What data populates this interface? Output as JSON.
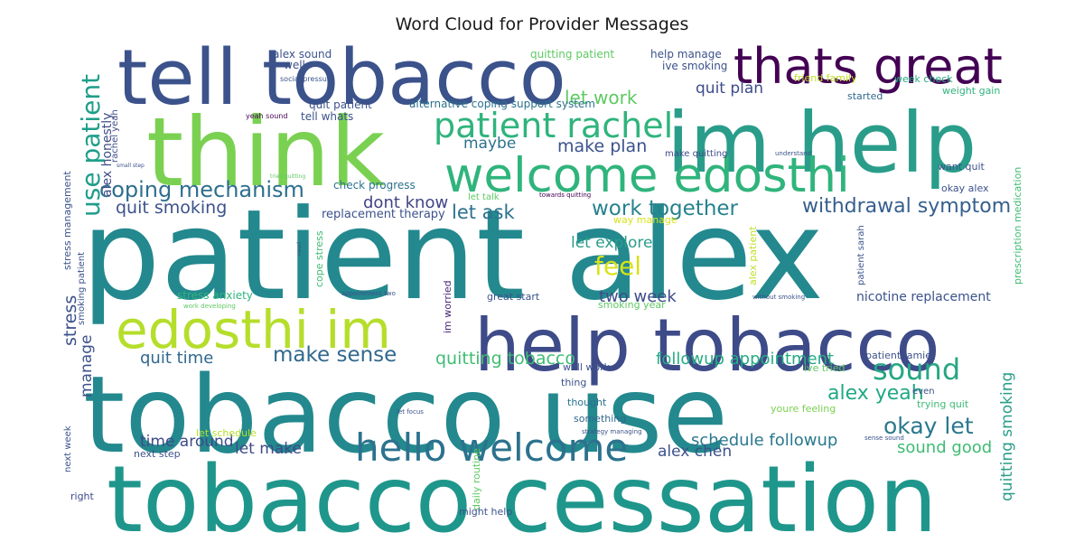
{
  "chart_data": {
    "type": "wordcloud",
    "title": "Word Cloud for Provider Messages",
    "words": [
      {
        "text": "patient alex",
        "color": "#23898e"
      },
      {
        "text": "tobacco use",
        "color": "#23898e"
      },
      {
        "text": "tobacco cessation",
        "color": "#1f968b"
      },
      {
        "text": "think",
        "color": "#7ad151"
      },
      {
        "text": "tell tobacco",
        "color": "#3b528b"
      },
      {
        "text": "im help",
        "color": "#2a9d8a"
      },
      {
        "text": "help tobacco",
        "color": "#3e4b89"
      },
      {
        "text": "thats great",
        "color": "#440154"
      },
      {
        "text": "welcome edosthi",
        "color": "#2fb47c"
      },
      {
        "text": "edosthi im",
        "color": "#b5de2b"
      },
      {
        "text": "hello welcome",
        "color": "#2c728e"
      },
      {
        "text": "patient rachel",
        "color": "#2fb47c"
      },
      {
        "text": "use patient",
        "color": "#1f9e89"
      },
      {
        "text": "coping mechanism",
        "color": "#2e6f8e"
      },
      {
        "text": "withdrawal symptom",
        "color": "#355f8d"
      },
      {
        "text": "work together",
        "color": "#26828e"
      },
      {
        "text": "make sense",
        "color": "#31688e"
      },
      {
        "text": "sound",
        "color": "#26a784"
      },
      {
        "text": "alex yeah",
        "color": "#22a884"
      },
      {
        "text": "okay let",
        "color": "#2a788e"
      },
      {
        "text": "feel",
        "color": "#d8e219"
      },
      {
        "text": "let work",
        "color": "#5ec962"
      },
      {
        "text": "quit smoking",
        "color": "#3b528b"
      },
      {
        "text": "let ask",
        "color": "#2c728e"
      },
      {
        "text": "make plan",
        "color": "#3b528b"
      },
      {
        "text": "maybe",
        "color": "#2c728e"
      },
      {
        "text": "dont know",
        "color": "#414487"
      },
      {
        "text": "quit plan",
        "color": "#3e4c8a"
      },
      {
        "text": "let explore",
        "color": "#2a9d8a"
      },
      {
        "text": "two week",
        "color": "#3e4c8a"
      },
      {
        "text": "quitting tobacco",
        "color": "#3fbc73"
      },
      {
        "text": "followup appointment",
        "color": "#25ac82"
      },
      {
        "text": "schedule followup",
        "color": "#2a788e"
      },
      {
        "text": "sound good",
        "color": "#3fbc73"
      },
      {
        "text": "alex chen",
        "color": "#3b528b"
      },
      {
        "text": "let make",
        "color": "#3e4a89"
      },
      {
        "text": "time around",
        "color": "#3e4a89"
      },
      {
        "text": "quit time",
        "color": "#31688e"
      },
      {
        "text": "stress",
        "color": "#3b528b"
      },
      {
        "text": "manage",
        "color": "#3b528b"
      },
      {
        "text": "alex honestly",
        "color": "#3e4c8a"
      },
      {
        "text": "quitting smoking",
        "color": "#2a9d8a"
      },
      {
        "text": "nicotine replacement",
        "color": "#3b528b"
      },
      {
        "text": "replacement therapy",
        "color": "#3b528b"
      },
      {
        "text": "check progress",
        "color": "#2c728e"
      },
      {
        "text": "stress anxiety",
        "color": "#2fb47c"
      },
      {
        "text": "alex sound",
        "color": "#3b528b"
      },
      {
        "text": "well",
        "color": "#3b528b"
      },
      {
        "text": "quit patient",
        "color": "#3b528b"
      },
      {
        "text": "tell whats",
        "color": "#3b528b"
      },
      {
        "text": "alternative coping support system",
        "color": "#2c728e"
      },
      {
        "text": "quitting patient",
        "color": "#5ec962"
      },
      {
        "text": "help manage",
        "color": "#3b528b"
      },
      {
        "text": "ive smoking",
        "color": "#3b528b"
      },
      {
        "text": "friend family",
        "color": "#bddf26"
      },
      {
        "text": "week check",
        "color": "#25ac82"
      },
      {
        "text": "weight gain",
        "color": "#2fb47c"
      },
      {
        "text": "started",
        "color": "#31688e"
      },
      {
        "text": "make quitting",
        "color": "#3e4c8a"
      },
      {
        "text": "want quit",
        "color": "#3b528b"
      },
      {
        "text": "okay alex",
        "color": "#3b528b"
      },
      {
        "text": "prescription medication",
        "color": "#3fbc73"
      },
      {
        "text": "patient sarah",
        "color": "#3b528b"
      },
      {
        "text": "alex patient",
        "color": "#bddf26"
      },
      {
        "text": "way manage",
        "color": "#d8e219"
      },
      {
        "text": "smoking year",
        "color": "#5ec962"
      },
      {
        "text": "great start",
        "color": "#3b528b"
      },
      {
        "text": "im worried",
        "color": "#482878"
      },
      {
        "text": "cope stress",
        "color": "#3fbc73"
      },
      {
        "text": "smoking patient",
        "color": "#3b528b"
      },
      {
        "text": "stress management",
        "color": "#3b528b"
      },
      {
        "text": "rachel yeah",
        "color": "#3e4c8a"
      },
      {
        "text": "patient jamie",
        "color": "#3b528b"
      },
      {
        "text": "ive tried",
        "color": "#5ec962"
      },
      {
        "text": "trying quit",
        "color": "#3fbc73"
      },
      {
        "text": "youre feeling",
        "color": "#7ad151"
      },
      {
        "text": "even",
        "color": "#3b528b"
      },
      {
        "text": "well work",
        "color": "#3b528b"
      },
      {
        "text": "thing",
        "color": "#3b528b"
      },
      {
        "text": "thought",
        "color": "#2c728e"
      },
      {
        "text": "something",
        "color": "#31688e"
      },
      {
        "text": "daily routine",
        "color": "#5ec962"
      },
      {
        "text": "next step",
        "color": "#3b528b"
      },
      {
        "text": "let schedule",
        "color": "#b5de2b"
      },
      {
        "text": "next week",
        "color": "#3b528b"
      },
      {
        "text": "right",
        "color": "#3e4a89"
      },
      {
        "text": "might help",
        "color": "#3b528b"
      },
      {
        "text": "let talk",
        "color": "#5ec962"
      },
      {
        "text": "social pressure",
        "color": "#3b528b"
      },
      {
        "text": "yeah sound",
        "color": "#440154"
      },
      {
        "text": "small step",
        "color": "#3b528b"
      },
      {
        "text": "tried quitting",
        "color": "#5ec962"
      },
      {
        "text": "towards quitting",
        "color": "#440154"
      },
      {
        "text": "understand",
        "color": "#3b528b"
      },
      {
        "text": "appointment two",
        "color": "#3b528b"
      },
      {
        "text": "without smoking",
        "color": "#3b528b"
      },
      {
        "text": "work developing",
        "color": "#5ec962"
      },
      {
        "text": "let focus",
        "color": "#3b528b"
      },
      {
        "text": "strategy managing",
        "color": "#3b528b"
      },
      {
        "text": "sense sound",
        "color": "#3b528b"
      },
      {
        "text": "need",
        "color": "#3b528b"
      }
    ]
  }
}
